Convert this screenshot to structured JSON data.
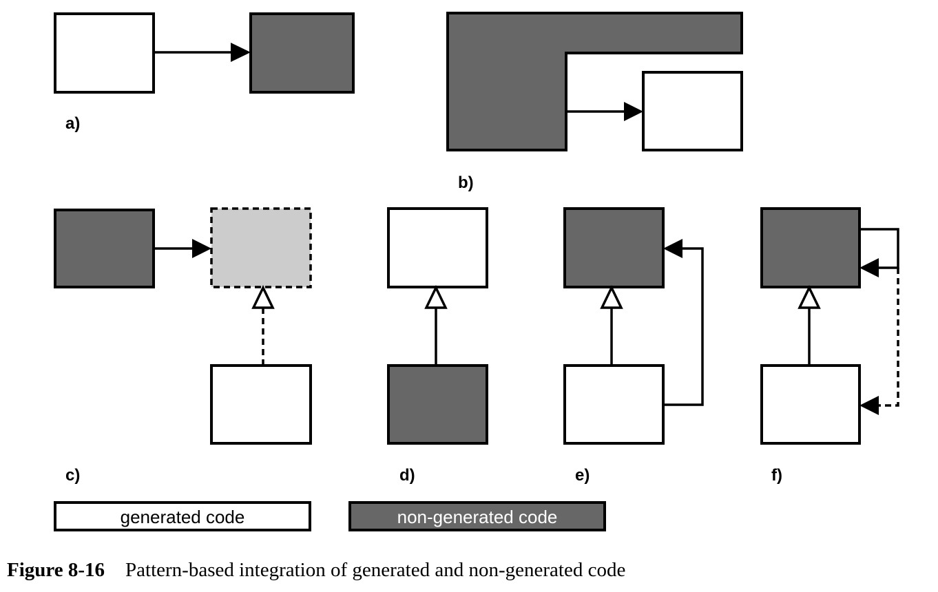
{
  "panels": {
    "a": "a)",
    "b": "b)",
    "c": "c)",
    "d": "d)",
    "e": "e)",
    "f": "f)"
  },
  "legend": {
    "generated": "generated code",
    "non_generated": "non-generated code"
  },
  "caption": {
    "figure_number": "Figure 8-16",
    "text": "Pattern-based integration of generated and non-generated code"
  },
  "colors": {
    "generated": "#ffffff",
    "non_generated": "#676767",
    "abstract": "#cccccc",
    "stroke": "#000000"
  }
}
